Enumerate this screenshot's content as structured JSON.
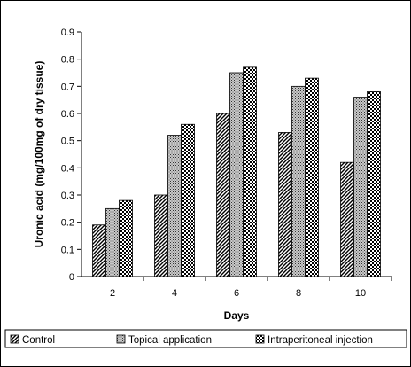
{
  "chart_data": {
    "type": "bar",
    "title": "",
    "xlabel": "Days",
    "ylabel": "Uronic acid (mg/100mg of dry tissue)",
    "categories": [
      "2",
      "4",
      "6",
      "8",
      "10"
    ],
    "ylim": [
      0,
      0.9
    ],
    "yticks": [
      "0",
      "0.1",
      "0.2",
      "0.3",
      "0.4",
      "0.5",
      "0.6",
      "0.7",
      "0.8",
      "0.9"
    ],
    "grid": false,
    "legend_position": "bottom",
    "series": [
      {
        "name": "Control",
        "values": [
          0.19,
          0.3,
          0.6,
          0.53,
          0.42
        ],
        "pattern": "diagonal-hatch"
      },
      {
        "name": "Topical application",
        "values": [
          0.25,
          0.52,
          0.75,
          0.7,
          0.66
        ],
        "pattern": "dense-dots"
      },
      {
        "name": "Intraperitoneal injection",
        "values": [
          0.28,
          0.56,
          0.77,
          0.73,
          0.68
        ],
        "pattern": "checkered"
      }
    ]
  }
}
